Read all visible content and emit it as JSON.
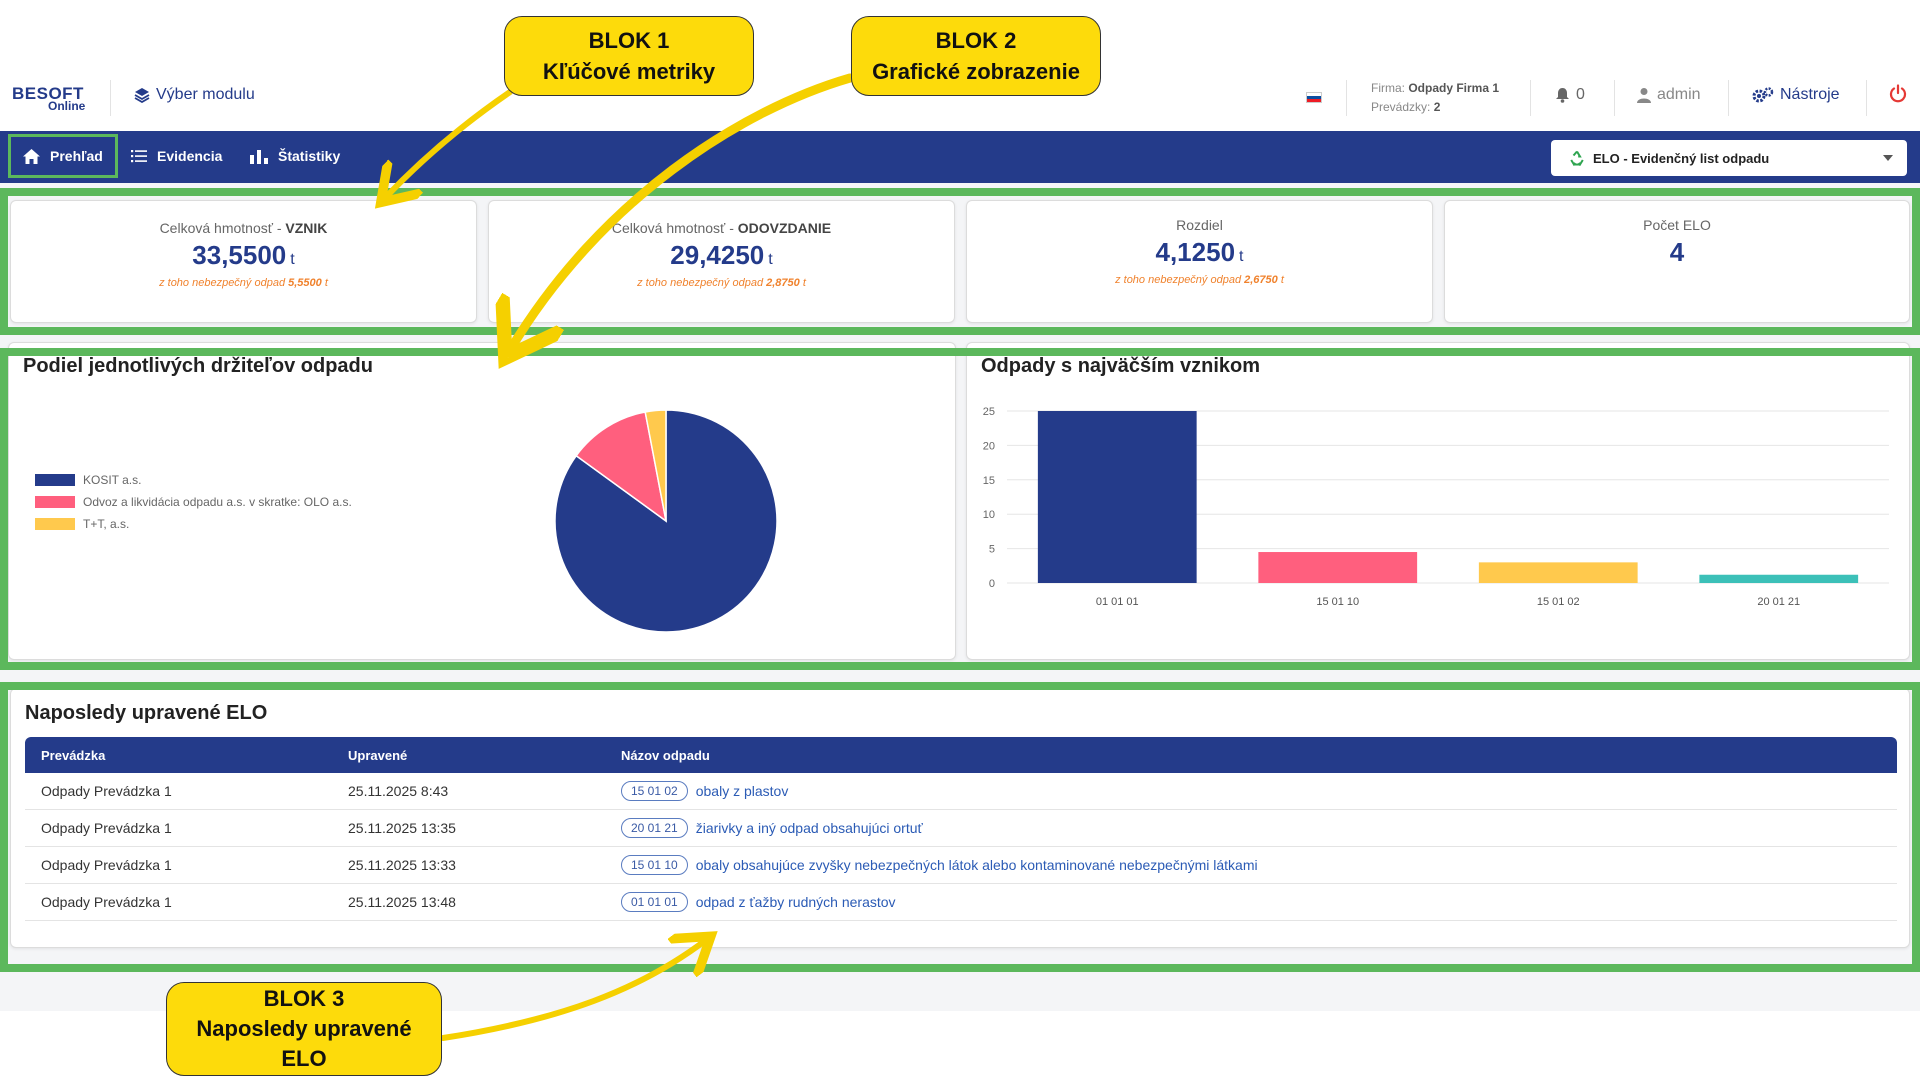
{
  "header": {
    "logo_main": "BESOFT",
    "logo_sub": "Online",
    "module_label": "Výber modulu",
    "firm_label": "Firma:",
    "firm_name": "Odpady Firma 1",
    "prevadzky_label": "Prevádzky:",
    "prevadzky_count": "2",
    "notifications_count": "0",
    "user_name": "admin",
    "tools_label": "Nástroje"
  },
  "nav": {
    "items": [
      {
        "label": "Prehľad",
        "icon": "home-icon"
      },
      {
        "label": "Evidencia",
        "icon": "list-icon"
      },
      {
        "label": "Štatistiky",
        "icon": "bar-chart-icon"
      }
    ],
    "selector_value": "ELO - Evidenčný list odpadu"
  },
  "metrics": [
    {
      "label": "Celková hmotnosť - ",
      "label_bold": "VZNIK",
      "value": "33,5500",
      "unit": "t",
      "sub": "z toho nebezpečný odpad ",
      "sub_value": "5,5500",
      "sub_unit": " t"
    },
    {
      "label": "Celková hmotnosť - ",
      "label_bold": "ODOVZDANIE",
      "value": "29,4250",
      "unit": "t",
      "sub": "z toho nebezpečný odpad ",
      "sub_value": "2,8750",
      "sub_unit": " t"
    },
    {
      "label": "Rozdiel",
      "label_bold": "",
      "value": "4,1250",
      "unit": "t",
      "sub": "z toho nebezpečný odpad ",
      "sub_value": "2,6750",
      "sub_unit": " t"
    },
    {
      "label": "Počet ELO",
      "label_bold": "",
      "value": "4",
      "unit": "",
      "sub": "",
      "sub_value": "",
      "sub_unit": ""
    }
  ],
  "pie_card": {
    "title": "Podiel jednotlivých držiteľov odpadu"
  },
  "bar_card": {
    "title": "Odpady s najväčším vznikom"
  },
  "chart_data": [
    {
      "type": "pie",
      "title": "Podiel jednotlivých držiteľov odpadu",
      "labels": [
        "KOSIT a.s.",
        "Odvoz a likvidácia odpadu a.s. v skratke: OLO a.s.",
        "T+T, a.s."
      ],
      "values": [
        85,
        12,
        3
      ],
      "colors": [
        "#243b8a",
        "#ff5f7e",
        "#ffc94d"
      ],
      "legend": "left"
    },
    {
      "type": "bar",
      "title": "Odpady s najväčším vznikom",
      "categories": [
        "01 01 01",
        "15 01 10",
        "15 01 02",
        "20 01 21"
      ],
      "values": [
        25,
        4.5,
        3,
        1.2
      ],
      "colors": [
        "#243b8a",
        "#ff5f7e",
        "#ffc94d",
        "#3cc0b8"
      ],
      "ylim": [
        0,
        25
      ],
      "yticks": [
        0,
        5,
        10,
        15,
        20,
        25
      ],
      "grid": true
    }
  ],
  "recent": {
    "title": "Naposledy upravené ELO",
    "columns": [
      "Prevádzka",
      "Upravené",
      "Názov odpadu"
    ],
    "rows": [
      {
        "prevadzka": "Odpady Prevádzka 1",
        "upravene": "25.11.2025 8:43",
        "code": "15 01 02",
        "name": "obaly z plastov"
      },
      {
        "prevadzka": "Odpady Prevádzka 1",
        "upravene": "25.11.2025 13:35",
        "code": "20 01 21",
        "name": "žiarivky a iný odpad obsahujúci ortuť"
      },
      {
        "prevadzka": "Odpady Prevádzka 1",
        "upravene": "25.11.2025 13:33",
        "code": "15 01 10",
        "name": "obaly obsahujúce zvyšky nebezpečných látok alebo kontaminované nebezpečnými látkami"
      },
      {
        "prevadzka": "Odpady Prevádzka 1",
        "upravene": "25.11.2025 13:48",
        "code": "01 01 01",
        "name": "odpad z ťažby rudných nerastov"
      }
    ]
  },
  "callouts": [
    {
      "line1": "BLOK 1",
      "line2": "Kľúčové metriky",
      "line3": ""
    },
    {
      "line1": "BLOK 2",
      "line2": "Grafické zobrazenie",
      "line3": ""
    },
    {
      "line1": "BLOK 3",
      "line2": "Naposledy upravené",
      "line3": "ELO"
    }
  ]
}
